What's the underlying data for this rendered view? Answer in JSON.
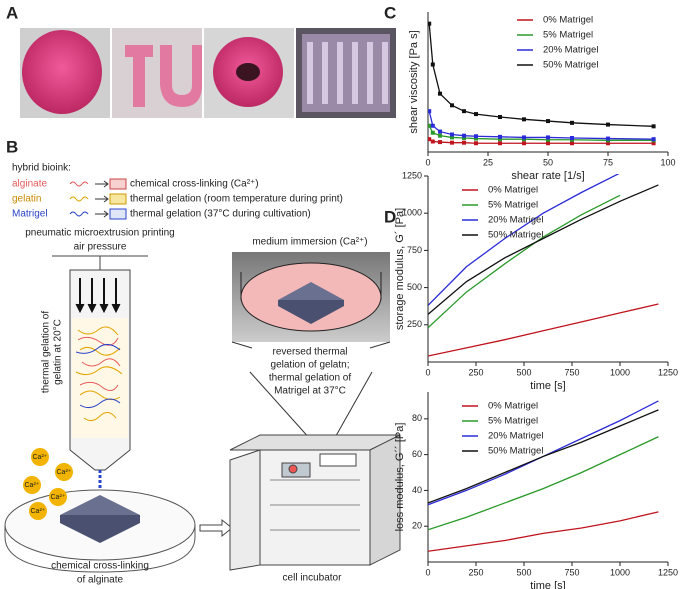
{
  "panel_labels": [
    "A",
    "B",
    "C",
    "D"
  ],
  "bioink": {
    "heading": "hybrid bioink:",
    "rows": [
      {
        "material": "alginate",
        "process": "chemical cross-linking (Ca²⁺)"
      },
      {
        "material": "gelatin",
        "process": "thermal gelation (room temperature during print)"
      },
      {
        "material": "Matrigel",
        "process": "thermal gelation (37°C during cultivation)"
      }
    ]
  },
  "diagram": {
    "printing": "pneumatic microextrusion printing",
    "pressure": "air pressure",
    "gelation": [
      "thermal gelation of",
      "gelatin at 20°C"
    ],
    "medium": "medium immersion (Ca²⁺)",
    "reversed": [
      "reversed thermal",
      "gelation of gelatn;",
      "thermal gelation of",
      "Matrigel at 37°C"
    ],
    "crosslink": [
      "chemical cross-linking",
      "of alginate"
    ],
    "incubator": "cell incubator",
    "ion": "Ca²⁺"
  },
  "chart_data": [
    {
      "type": "line",
      "markers": true,
      "xlabel": "shear rate [1/s]",
      "ylabel": "shear viscosity [Pa s]",
      "xlim": [
        0,
        100
      ],
      "xticks": [
        0,
        25,
        50,
        75,
        100
      ],
      "ylim": [
        0,
        2.4
      ],
      "legend": "right",
      "x": [
        0.5,
        2,
        5,
        10,
        15,
        20,
        30,
        40,
        50,
        60,
        75,
        94
      ],
      "series": [
        {
          "name": "0% Matrigel",
          "color": "#c0141e",
          "values": [
            0.22,
            0.18,
            0.17,
            0.16,
            0.16,
            0.15,
            0.15,
            0.15,
            0.15,
            0.15,
            0.15,
            0.15
          ]
        },
        {
          "name": "5% Matrigel",
          "color": "#2a9a2a",
          "values": [
            0.45,
            0.33,
            0.28,
            0.25,
            0.24,
            0.23,
            0.22,
            0.22,
            0.21,
            0.21,
            0.2,
            0.2
          ]
        },
        {
          "name": "20% Matrigel",
          "color": "#2b2bd8",
          "values": [
            0.7,
            0.45,
            0.35,
            0.3,
            0.28,
            0.27,
            0.26,
            0.25,
            0.25,
            0.24,
            0.23,
            0.22
          ]
        },
        {
          "name": "50% Matrigel",
          "color": "#111111",
          "values": [
            2.2,
            1.5,
            1.0,
            0.8,
            0.7,
            0.65,
            0.6,
            0.56,
            0.53,
            0.5,
            0.47,
            0.44
          ]
        }
      ]
    },
    {
      "type": "line",
      "markers": false,
      "xlabel": "time [s]",
      "ylabel": "storage modulus, G´ [Pa]",
      "xlim": [
        0,
        1250
      ],
      "xticks": [
        0,
        250,
        500,
        750,
        1000,
        1250
      ],
      "ylim": [
        0,
        1250
      ],
      "yticks": [
        250,
        500,
        750,
        1000,
        1250
      ],
      "legend": "left",
      "x": [
        0,
        200,
        400,
        600,
        800,
        1000,
        1200
      ],
      "series": [
        {
          "name": "0% Matrigel",
          "color": "#c0141e",
          "values": [
            40,
            95,
            150,
            210,
            270,
            330,
            390
          ]
        },
        {
          "name": "5% Matrigel",
          "color": "#2a9a2a",
          "values": [
            230,
            470,
            660,
            840,
            990,
            1120,
            null
          ]
        },
        {
          "name": "20% Matrigel",
          "color": "#2b2bd8",
          "values": [
            380,
            640,
            830,
            1000,
            1140,
            1270,
            null
          ]
        },
        {
          "name": "50% Matrigel",
          "color": "#111111",
          "values": [
            320,
            540,
            700,
            830,
            960,
            1080,
            1190
          ]
        }
      ]
    },
    {
      "type": "line",
      "markers": false,
      "xlabel": "time [s]",
      "ylabel": "loss modulus, G´´ [Pa]",
      "xlim": [
        0,
        1250
      ],
      "xticks": [
        0,
        250,
        500,
        750,
        1000,
        1250
      ],
      "ylim": [
        0,
        95
      ],
      "yticks": [
        20,
        40,
        60,
        80
      ],
      "legend": "left",
      "x": [
        0,
        200,
        400,
        600,
        800,
        1000,
        1200
      ],
      "series": [
        {
          "name": "0% Matrigel",
          "color": "#c0141e",
          "values": [
            6,
            9,
            12,
            16,
            19,
            23,
            28
          ]
        },
        {
          "name": "5% Matrigel",
          "color": "#2a9a2a",
          "values": [
            18,
            25,
            33,
            41,
            50,
            60,
            70
          ]
        },
        {
          "name": "20% Matrigel",
          "color": "#2b2bd8",
          "values": [
            32,
            40,
            49,
            59,
            69,
            79,
            90
          ]
        },
        {
          "name": "50% Matrigel",
          "color": "#111111",
          "values": [
            33,
            41,
            50,
            59,
            67,
            76,
            85
          ]
        }
      ]
    }
  ]
}
